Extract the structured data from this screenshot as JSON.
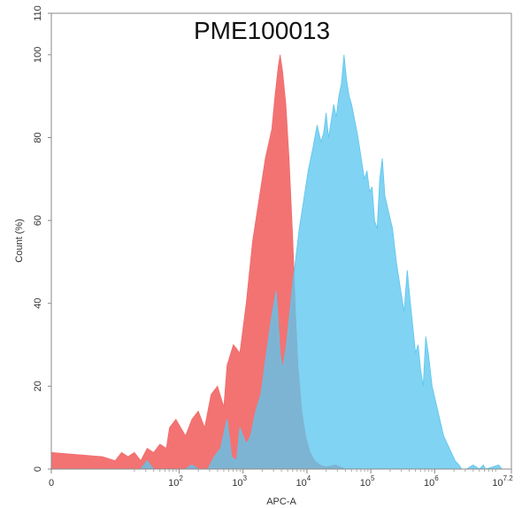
{
  "chart_data": {
    "type": "area",
    "title": "PME100013",
    "xlabel": "APC-A",
    "ylabel": "Count (%)",
    "x_scale": "biexponential-log",
    "xlim_log10": [
      0,
      7.2
    ],
    "ylim": [
      0,
      110
    ],
    "y_ticks": [
      0,
      20,
      40,
      60,
      80,
      100,
      110
    ],
    "x_ticks": [
      {
        "label": "0",
        "exp": ""
      },
      {
        "label": "10",
        "exp": "2"
      },
      {
        "label": "10",
        "exp": "3"
      },
      {
        "label": "10",
        "exp": "4"
      },
      {
        "label": "10",
        "exp": "5"
      },
      {
        "label": "10",
        "exp": "6"
      },
      {
        "label": "10",
        "exp": "7.2"
      }
    ],
    "grid": false,
    "legend": "none",
    "series": [
      {
        "color": "#f26b6b",
        "points": [
          [
            0,
            4
          ],
          [
            0.8,
            3
          ],
          [
            1.0,
            2
          ],
          [
            1.1,
            4
          ],
          [
            1.2,
            3
          ],
          [
            1.3,
            4
          ],
          [
            1.4,
            2
          ],
          [
            1.5,
            5
          ],
          [
            1.6,
            4
          ],
          [
            1.7,
            6
          ],
          [
            1.8,
            5
          ],
          [
            1.85,
            10
          ],
          [
            1.95,
            12
          ],
          [
            2.1,
            8
          ],
          [
            2.2,
            12
          ],
          [
            2.3,
            14
          ],
          [
            2.4,
            10
          ],
          [
            2.5,
            18
          ],
          [
            2.6,
            20
          ],
          [
            2.7,
            15
          ],
          [
            2.75,
            25
          ],
          [
            2.85,
            30
          ],
          [
            2.95,
            28
          ],
          [
            3.05,
            40
          ],
          [
            3.15,
            55
          ],
          [
            3.25,
            65
          ],
          [
            3.35,
            75
          ],
          [
            3.45,
            82
          ],
          [
            3.5,
            90
          ],
          [
            3.55,
            97
          ],
          [
            3.58,
            100
          ],
          [
            3.62,
            96
          ],
          [
            3.67,
            88
          ],
          [
            3.72,
            75
          ],
          [
            3.78,
            55
          ],
          [
            3.82,
            38
          ],
          [
            3.86,
            25
          ],
          [
            3.92,
            14
          ],
          [
            3.98,
            8
          ],
          [
            4.05,
            4
          ],
          [
            4.12,
            2
          ],
          [
            4.2,
            1
          ],
          [
            4.3,
            0.5
          ],
          [
            4.45,
            1
          ],
          [
            4.6,
            0
          ]
        ]
      },
      {
        "color": "#5cc6ee",
        "points": [
          [
            1.4,
            0
          ],
          [
            1.5,
            2
          ],
          [
            1.6,
            0
          ],
          [
            2.1,
            0
          ],
          [
            2.2,
            1
          ],
          [
            2.3,
            0
          ],
          [
            2.45,
            0
          ],
          [
            2.55,
            3
          ],
          [
            2.65,
            5
          ],
          [
            2.75,
            12
          ],
          [
            2.82,
            3
          ],
          [
            2.9,
            2
          ],
          [
            2.95,
            10
          ],
          [
            3.05,
            6
          ],
          [
            3.12,
            8
          ],
          [
            3.2,
            14
          ],
          [
            3.28,
            18
          ],
          [
            3.35,
            26
          ],
          [
            3.45,
            37
          ],
          [
            3.52,
            43
          ],
          [
            3.58,
            28
          ],
          [
            3.62,
            24
          ],
          [
            3.68,
            30
          ],
          [
            3.78,
            45
          ],
          [
            3.88,
            58
          ],
          [
            3.95,
            65
          ],
          [
            4.02,
            72
          ],
          [
            4.1,
            78
          ],
          [
            4.16,
            83
          ],
          [
            4.22,
            79
          ],
          [
            4.26,
            81
          ],
          [
            4.3,
            86
          ],
          [
            4.34,
            80
          ],
          [
            4.38,
            84
          ],
          [
            4.42,
            88
          ],
          [
            4.46,
            85
          ],
          [
            4.5,
            90
          ],
          [
            4.54,
            93
          ],
          [
            4.58,
            100
          ],
          [
            4.62,
            94
          ],
          [
            4.66,
            90
          ],
          [
            4.7,
            88
          ],
          [
            4.75,
            84
          ],
          [
            4.8,
            80
          ],
          [
            4.86,
            74
          ],
          [
            4.9,
            70
          ],
          [
            4.94,
            72
          ],
          [
            4.98,
            67
          ],
          [
            5.02,
            68
          ],
          [
            5.06,
            60
          ],
          [
            5.1,
            58
          ],
          [
            5.14,
            70
          ],
          [
            5.18,
            75
          ],
          [
            5.22,
            66
          ],
          [
            5.28,
            62
          ],
          [
            5.34,
            58
          ],
          [
            5.4,
            50
          ],
          [
            5.46,
            44
          ],
          [
            5.52,
            38
          ],
          [
            5.57,
            48
          ],
          [
            5.62,
            40
          ],
          [
            5.66,
            34
          ],
          [
            5.7,
            28
          ],
          [
            5.74,
            30
          ],
          [
            5.78,
            24
          ],
          [
            5.82,
            20
          ],
          [
            5.86,
            32
          ],
          [
            5.9,
            28
          ],
          [
            5.96,
            20
          ],
          [
            6.02,
            16
          ],
          [
            6.08,
            12
          ],
          [
            6.14,
            8
          ],
          [
            6.2,
            6
          ],
          [
            6.26,
            4
          ],
          [
            6.32,
            2
          ],
          [
            6.38,
            1
          ],
          [
            6.42,
            0
          ],
          [
            6.5,
            0
          ],
          [
            6.6,
            1
          ],
          [
            6.7,
            0
          ],
          [
            6.76,
            1
          ],
          [
            6.8,
            0
          ],
          [
            7.0,
            1
          ],
          [
            7.05,
            0
          ],
          [
            7.2,
            0
          ]
        ]
      }
    ]
  }
}
